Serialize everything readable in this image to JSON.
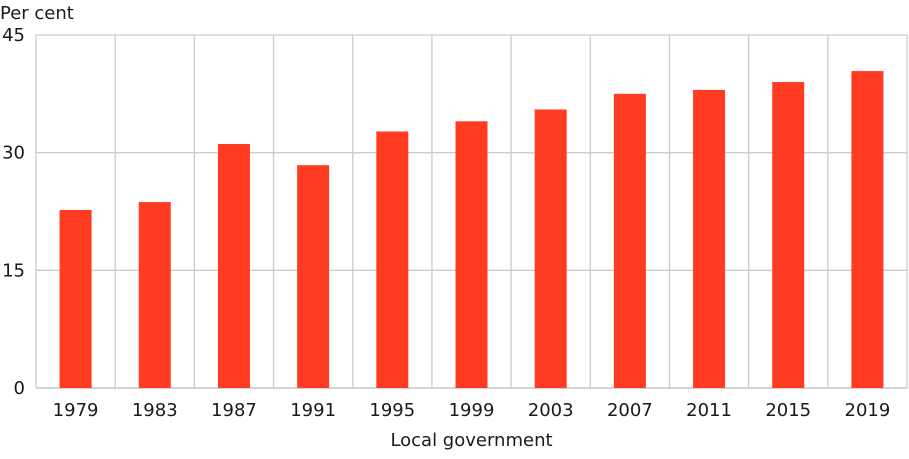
{
  "chart_data": {
    "type": "bar",
    "title": "",
    "ylabel": "Per cent",
    "xlabel": "Local government",
    "categories": [
      "1979",
      "1983",
      "1987",
      "1991",
      "1995",
      "1999",
      "2003",
      "2007",
      "2011",
      "2015",
      "2019"
    ],
    "series": [
      {
        "values": [
          22.7,
          23.7,
          31.1,
          28.4,
          32.7,
          34.0,
          35.5,
          37.5,
          38.0,
          39.0,
          40.4
        ],
        "color": "#ff3b22"
      }
    ],
    "ylim": [
      0,
      45
    ],
    "yticks": [
      0,
      15,
      30,
      45
    ],
    "grid": true,
    "grid_color": "#cccccc",
    "legend": "none"
  }
}
